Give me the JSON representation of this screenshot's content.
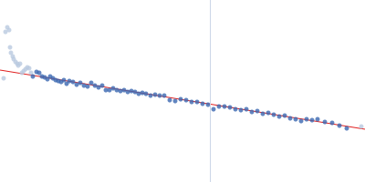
{
  "chart_data": {
    "type": "scatter",
    "xlim": [
      0,
      400
    ],
    "ylim": [
      0,
      200
    ],
    "tick_labels": false,
    "grid": false,
    "reference_x": 230,
    "reference_color": "#ccd6e8",
    "series": [
      {
        "type": "scatter",
        "marker": "circle",
        "color": "#b9c9e0",
        "x": [
          4,
          6,
          8,
          10,
          11,
          12,
          14,
          15,
          17,
          19,
          20,
          22,
          24,
          26,
          28,
          30,
          32,
          34,
          396
        ],
        "values": [
          114,
          165,
          170,
          167,
          148,
          142,
          138,
          135,
          132,
          130,
          128,
          130,
          120,
          122,
          124,
          126,
          125,
          120,
          61
        ]
      },
      {
        "type": "scatter",
        "marker": "circle",
        "color": "#3a66b0",
        "x": [
          36,
          40,
          43,
          46,
          49,
          52,
          55,
          58,
          61,
          64,
          67,
          70,
          73,
          76,
          80,
          84,
          88,
          92,
          96,
          100,
          104,
          108,
          112,
          116,
          120,
          124,
          128,
          132,
          136,
          140,
          144,
          148,
          152,
          156,
          160,
          165,
          170,
          175,
          180,
          186,
          192,
          198,
          204,
          210,
          216,
          222,
          228,
          234,
          240,
          246,
          252,
          258,
          264,
          270,
          276,
          282,
          288,
          294,
          300,
          306,
          312,
          318,
          324,
          330,
          336,
          342,
          348,
          356,
          364,
          372,
          380
        ],
        "values": [
          116,
          121,
          120,
          116,
          115,
          113,
          116,
          114,
          112,
          111,
          110,
          112,
          108,
          111,
          110,
          107,
          109,
          106,
          105,
          109,
          106,
          104,
          106,
          101,
          101,
          103,
          101,
          100,
          101,
          99,
          100,
          99,
          97,
          98,
          97,
          95,
          96,
          95,
          95,
          90,
          89,
          91,
          90,
          88,
          88,
          86,
          85,
          80,
          83,
          83,
          82,
          80,
          79,
          80,
          77,
          78,
          75,
          76,
          74,
          72,
          73,
          70,
          69,
          67,
          69,
          68,
          69,
          66,
          65,
          62,
          59
        ]
      },
      {
        "type": "line",
        "line_style": "solid",
        "color": "#e02020",
        "x": [
          0,
          400
        ],
        "values": [
          123,
          58
        ]
      }
    ]
  }
}
